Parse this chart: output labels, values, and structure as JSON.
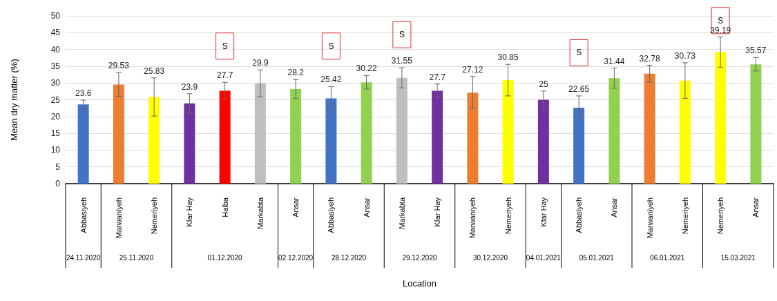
{
  "chart_data": {
    "type": "bar",
    "xlabel": "Location",
    "ylabel": "Mean dry matter (%)",
    "categories": [
      "Abbasiyeh",
      "Marwaniyeh",
      "Nemeriyeh",
      "Kfar Hay",
      "Halba",
      "Markabta",
      "Ansar",
      "Abbasiyeh",
      "Ansar",
      "Markabta",
      "Kfar Hay",
      "Marwaniyeh",
      "Nemeriyeh",
      "Kfar Hay",
      "Abbasiyeh",
      "Ansar",
      "Marwaniyeh",
      "Nemeriyeh",
      "Nemeriyeh",
      "Ansar"
    ],
    "values": [
      23.6,
      29.53,
      25.83,
      23.9,
      27.7,
      29.9,
      28.2,
      25.42,
      30.22,
      31.55,
      27.7,
      27.12,
      30.85,
      25,
      22.65,
      31.44,
      32.78,
      30.73,
      39.19,
      35.57
    ],
    "errors": [
      1.3,
      3.5,
      5.7,
      2.9,
      2.5,
      4,
      2.8,
      3.5,
      2,
      3,
      2,
      4.8,
      4.7,
      2.6,
      3.5,
      3,
      2.5,
      5.3,
      4.5,
      2
    ],
    "colors": [
      "#4472c4",
      "#ed7d31",
      "#ffff00",
      "#7030a0",
      "#ff0000",
      "#bfbfbf",
      "#92d050",
      "#4472c4",
      "#92d050",
      "#bfbfbf",
      "#7030a0",
      "#ed7d31",
      "#ffff00",
      "#7030a0",
      "#4472c4",
      "#92d050",
      "#ed7d31",
      "#ffff00",
      "#ffff00",
      "#92d050"
    ],
    "ylim": [
      0,
      50
    ],
    "yticks": [
      0,
      5,
      10,
      15,
      20,
      25,
      30,
      35,
      40,
      45,
      50
    ],
    "grid": "y",
    "data_labels": true,
    "annotations": [
      "24.11.2020",
      "25.11.2020",
      "01.12.2020",
      "02.12.2020",
      "28.12.2020",
      "29.12.2020",
      "30.12.2020",
      "04.01.2021",
      "05.01.2021",
      "06.01.2021",
      "15.03.2021",
      "S",
      "S",
      "S",
      "S",
      "S"
    ]
  }
}
